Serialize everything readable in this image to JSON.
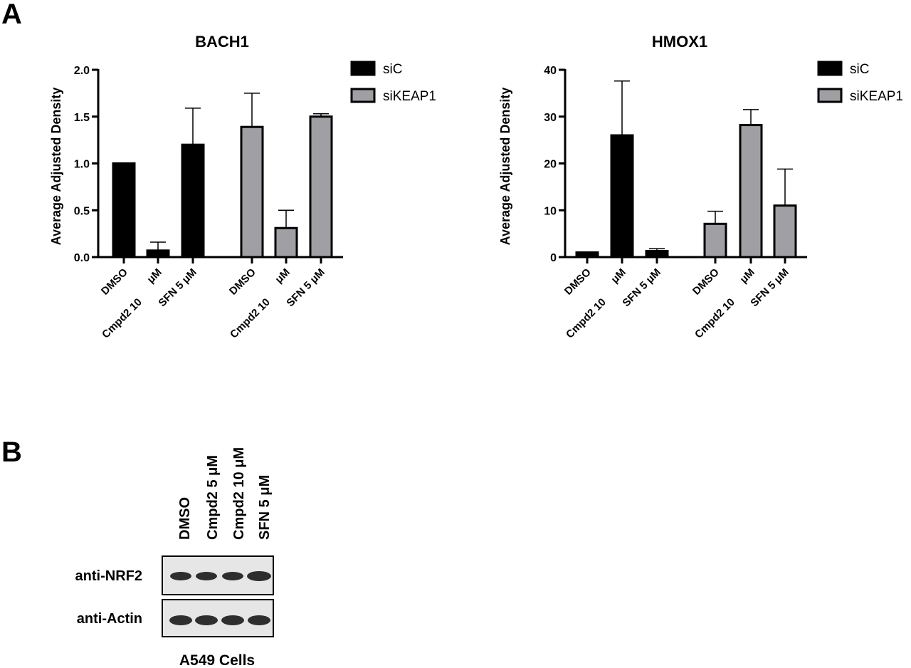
{
  "panels": {
    "a_label": "A",
    "b_label": "B"
  },
  "chart_data": [
    {
      "type": "bar",
      "title": "BACH1",
      "ylabel": "Average Adjusted Density",
      "xlabel": "",
      "ylim": [
        0,
        2.0
      ],
      "yticks": [
        "0.0",
        "0.5",
        "1.0",
        "1.5",
        "2.0"
      ],
      "ytick_values": [
        0,
        0.5,
        1.0,
        1.5,
        2.0
      ],
      "groups": [
        {
          "series": "siC",
          "bars": [
            {
              "category": "DMSO",
              "value": 1.0,
              "error": 0
            },
            {
              "category": "Cmpd2 10 μM",
              "value": 0.07,
              "error": 0.09
            },
            {
              "category": "SFN 5 μM",
              "value": 1.2,
              "error": 0.39
            }
          ]
        },
        {
          "series": "siKEAP1",
          "bars": [
            {
              "category": "DMSO",
              "value": 1.39,
              "error": 0.36
            },
            {
              "category": "Cmpd2 10 μM",
              "value": 0.31,
              "error": 0.19
            },
            {
              "category": "SFN 5 μM",
              "value": 1.5,
              "error": 0.03
            }
          ]
        }
      ],
      "legend": [
        {
          "name": "siC",
          "color": "#000000"
        },
        {
          "name": "siKEAP1",
          "color": "#a0a0a4"
        }
      ],
      "legend_position": "top-right"
    },
    {
      "type": "bar",
      "title": "HMOX1",
      "ylabel": "Average Adjusted Density",
      "xlabel": "",
      "ylim": [
        0,
        40
      ],
      "yticks": [
        "0",
        "10",
        "20",
        "30",
        "40"
      ],
      "ytick_values": [
        0,
        10,
        20,
        30,
        40
      ],
      "groups": [
        {
          "series": "siC",
          "bars": [
            {
              "category": "DMSO",
              "value": 1.0,
              "error": 0
            },
            {
              "category": "Cmpd2 10 μM",
              "value": 26,
              "error": 11.6
            },
            {
              "category": "SFN 5 μM",
              "value": 1.3,
              "error": 0.5
            }
          ]
        },
        {
          "series": "siKEAP1",
          "bars": [
            {
              "category": "DMSO",
              "value": 7.1,
              "error": 2.7
            },
            {
              "category": "Cmpd2 10 μM",
              "value": 28.2,
              "error": 3.3
            },
            {
              "category": "SFN 5 μM",
              "value": 11,
              "error": 7.8
            }
          ]
        }
      ],
      "legend": [
        {
          "name": "siC",
          "color": "#000000"
        },
        {
          "name": "siKEAP1",
          "color": "#a0a0a4"
        }
      ],
      "legend_position": "top-right"
    }
  ],
  "category_labels": {
    "dmso": "DMSO",
    "cmpd2_line1": "Cmpd2 10",
    "cmpd2_line2": "μM",
    "sfn": "SFN 5 μM"
  },
  "blot": {
    "columns": [
      "DMSO",
      "Cmpd2 5 μM",
      "Cmpd2 10 μM",
      "SFN 5 μM"
    ],
    "rows": [
      "anti-NRF2",
      "anti-Actin"
    ],
    "caption": "A549 Cells"
  },
  "colors": {
    "siC": "#000000",
    "siKEAP1": "#a0a0a4",
    "blot_background": "#e6e6e6",
    "band": "#1e1e1e"
  }
}
